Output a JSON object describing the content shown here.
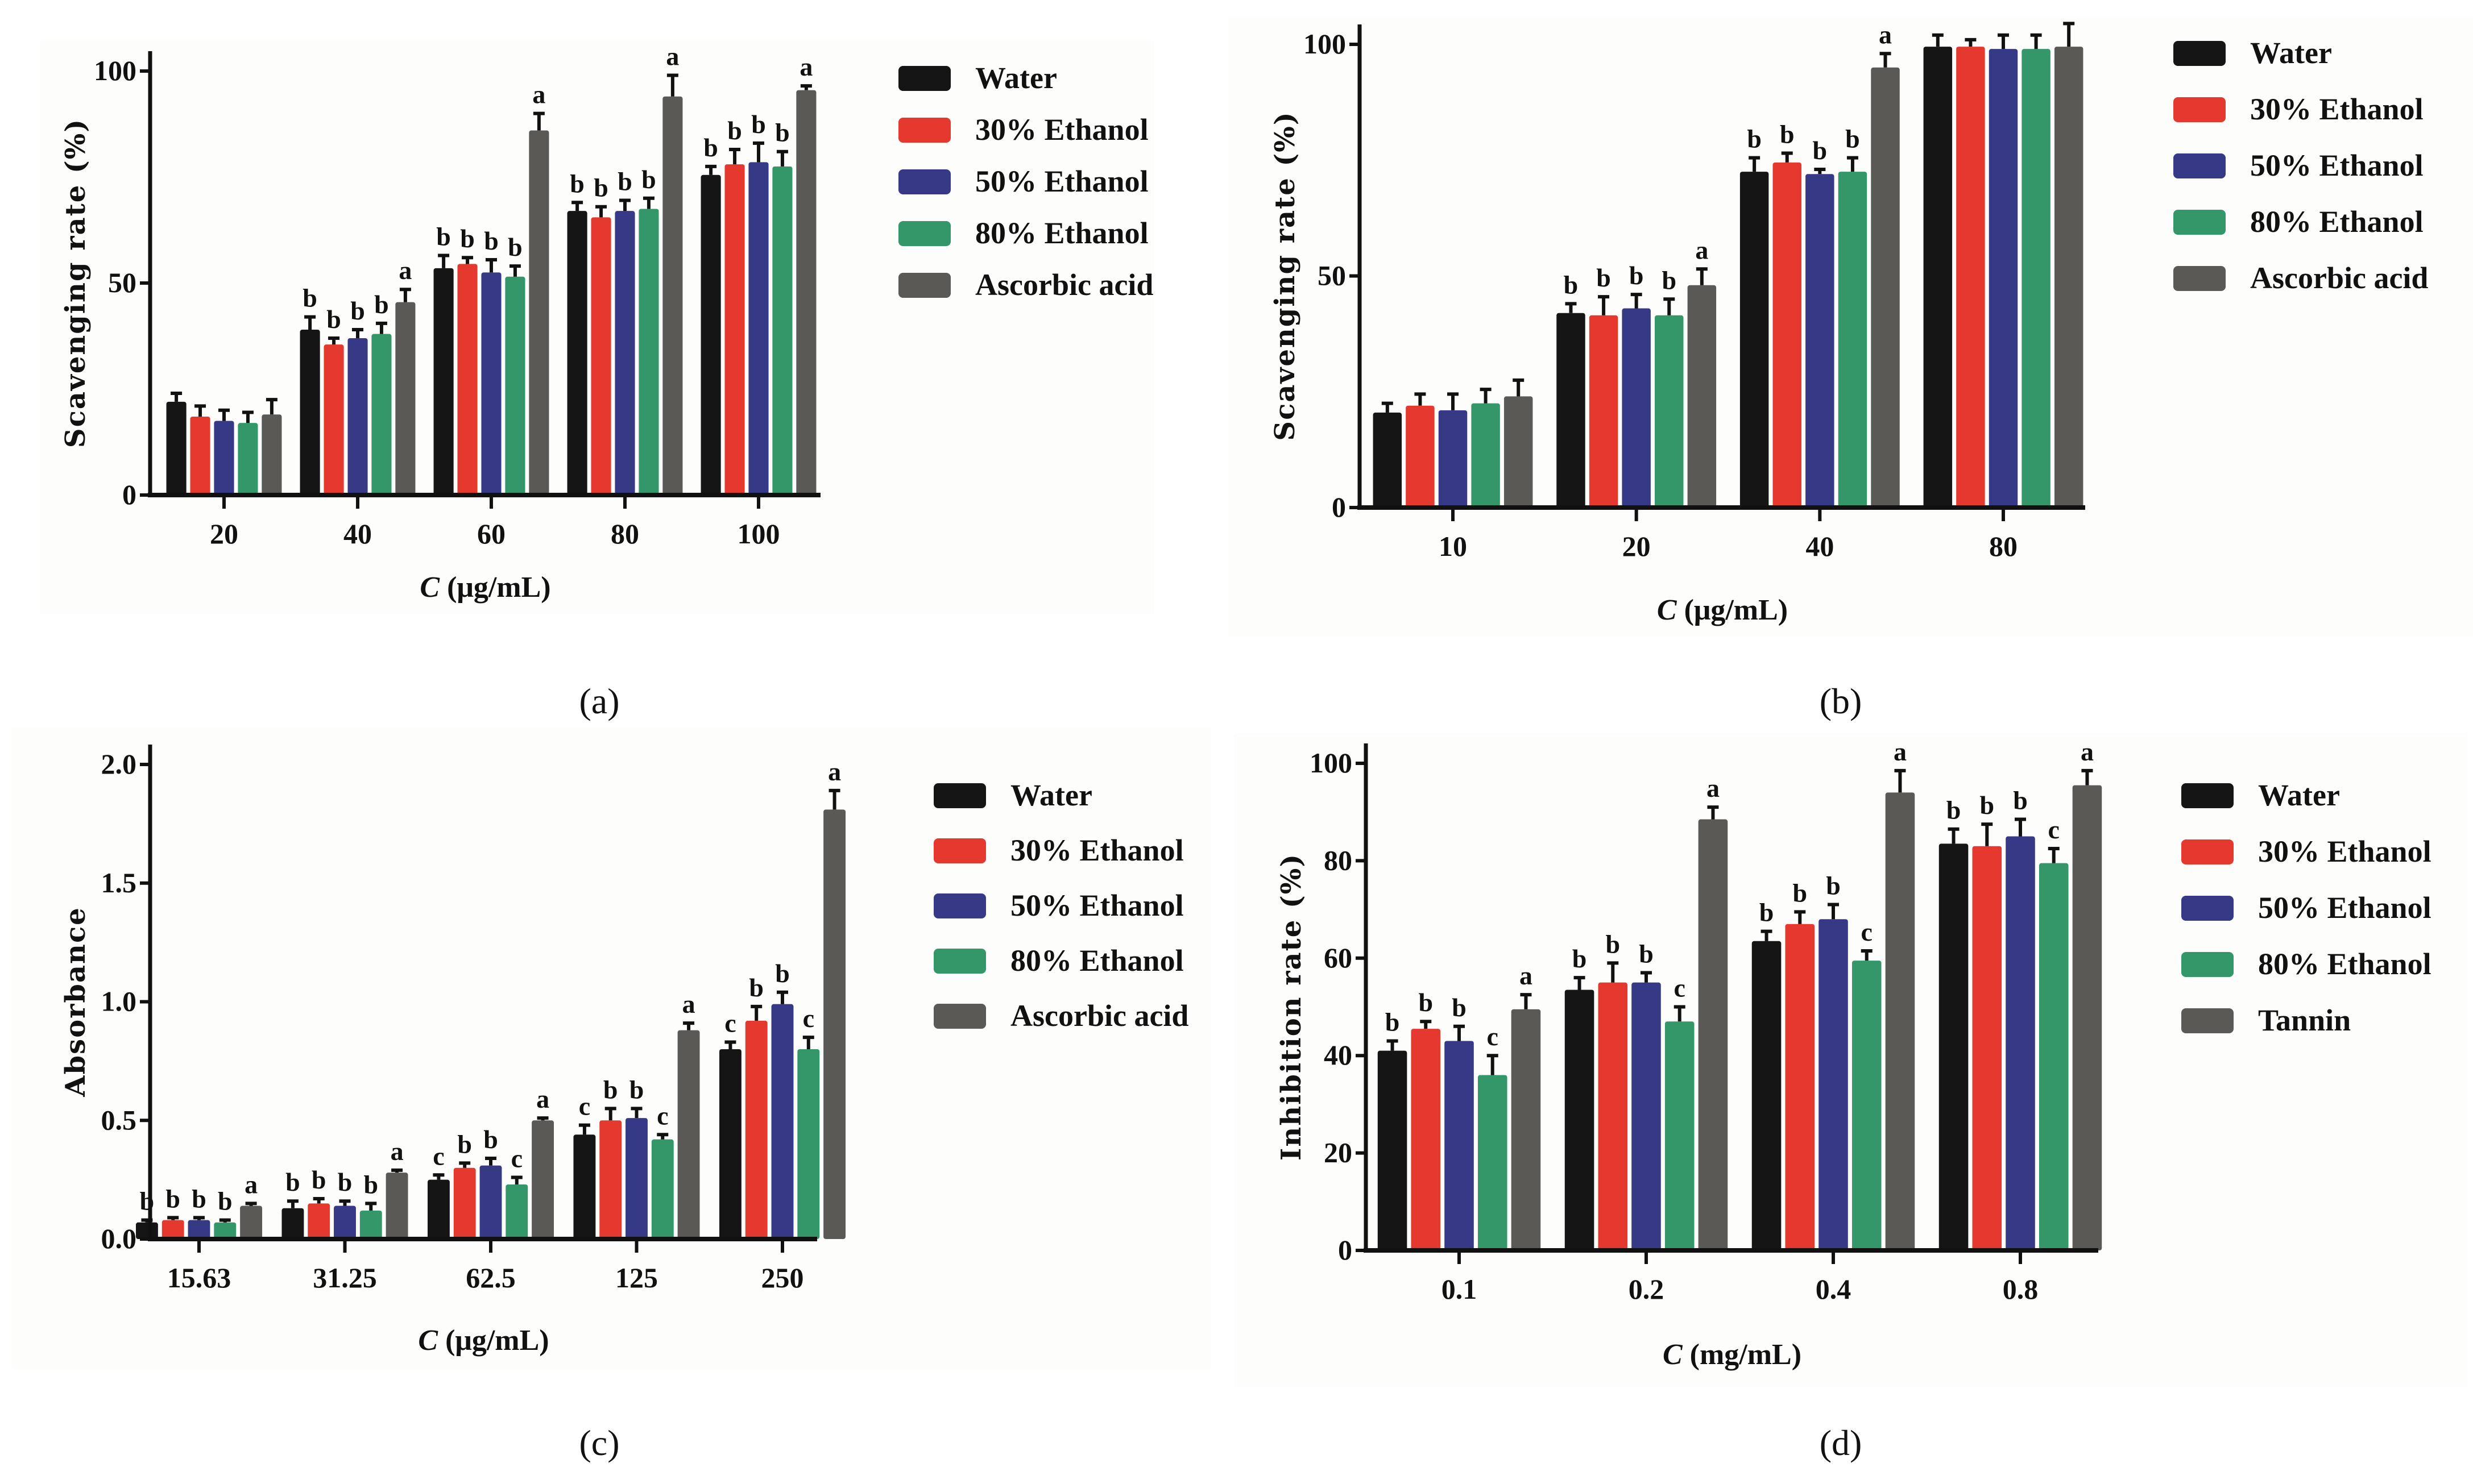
{
  "colors": {
    "Water": "#151515",
    "30% Ethanol": "#e5382f",
    "50% Ethanol": "#363a86",
    "80% Ethanol": "#33976a",
    "Ascorbic acid": "#5b5955",
    "Tannin": "#5b5955"
  },
  "chart_data": [
    {
      "type": "bar",
      "caption": "(a)",
      "ylabel": "Scavenging rate (%)",
      "xlabel_var": "C",
      "xlabel_unit": " (μg/mL)",
      "ylim": [
        0,
        100
      ],
      "yticks": [
        "0",
        "50",
        "100"
      ],
      "ytick_values": [
        0,
        50,
        100
      ],
      "categories": [
        "20",
        "40",
        "60",
        "80",
        "100"
      ],
      "legend_position": "right",
      "series": [
        {
          "name": "Water",
          "values": [
            22,
            39,
            53.5,
            67,
            75.5
          ],
          "errors": [
            2,
            3,
            3,
            2,
            2
          ],
          "letters": [
            "",
            "b",
            "b",
            "b",
            "b"
          ]
        },
        {
          "name": "30% Ethanol",
          "values": [
            18.5,
            35.5,
            54.5,
            65.5,
            78
          ],
          "errors": [
            2.5,
            1.5,
            1.5,
            2.5,
            3.5
          ],
          "letters": [
            "",
            "b",
            "b",
            "b",
            "b"
          ]
        },
        {
          "name": "50% Ethanol",
          "values": [
            17.5,
            37,
            52.5,
            67,
            78.5
          ],
          "errors": [
            2.5,
            2,
            3,
            2.5,
            4.5
          ],
          "letters": [
            "",
            "b",
            "b",
            "b",
            "b"
          ]
        },
        {
          "name": "80% Ethanol",
          "values": [
            17,
            38,
            51.5,
            67.5,
            77.5
          ],
          "errors": [
            2.5,
            2.5,
            2.5,
            2.5,
            3.5
          ],
          "letters": [
            "",
            "b",
            "b",
            "b",
            "b"
          ]
        },
        {
          "name": "Ascorbic acid",
          "values": [
            19,
            45.5,
            86,
            94,
            95.5
          ],
          "errors": [
            3.5,
            3,
            4,
            5,
            1
          ],
          "letters": [
            "",
            "a",
            "a",
            "a",
            "a"
          ]
        }
      ]
    },
    {
      "type": "bar",
      "caption": "(b)",
      "ylabel": "Scavenging rate (%)",
      "xlabel_var": "C",
      "xlabel_unit": " (μg/mL)",
      "ylim": [
        0,
        100
      ],
      "yticks": [
        "0",
        "50",
        "100"
      ],
      "ytick_values": [
        0,
        50,
        100
      ],
      "categories": [
        "10",
        "20",
        "40",
        "80"
      ],
      "legend_position": "right",
      "series": [
        {
          "name": "Water",
          "values": [
            20.5,
            42,
            72.5,
            99.5
          ],
          "errors": [
            2,
            2,
            3,
            2.5
          ],
          "letters": [
            "",
            "b",
            "b",
            ""
          ]
        },
        {
          "name": "30% Ethanol",
          "values": [
            22,
            41.5,
            74.5,
            99.5
          ],
          "errors": [
            2.5,
            4,
            2,
            1.5
          ],
          "letters": [
            "",
            "b",
            "b",
            ""
          ]
        },
        {
          "name": "50% Ethanol",
          "values": [
            21,
            43,
            72,
            99
          ],
          "errors": [
            3.5,
            3,
            1,
            3
          ],
          "letters": [
            "",
            "b",
            "b",
            ""
          ]
        },
        {
          "name": "80% Ethanol",
          "values": [
            22.5,
            41.5,
            72.5,
            99
          ],
          "errors": [
            3,
            3.5,
            3,
            3
          ],
          "letters": [
            "",
            "b",
            "b",
            ""
          ]
        },
        {
          "name": "Ascorbic acid",
          "values": [
            24,
            48,
            95,
            99.5
          ],
          "errors": [
            3.5,
            3.5,
            3,
            5
          ],
          "letters": [
            "",
            "a",
            "a",
            ""
          ]
        }
      ]
    },
    {
      "type": "bar",
      "caption": "(c)",
      "ylabel": "Absorbance",
      "xlabel_var": "C",
      "xlabel_unit": " (μg/mL)",
      "ylim": [
        0,
        2
      ],
      "yticks": [
        "0.0",
        "0.5",
        "1.0",
        "1.5",
        "2.0"
      ],
      "ytick_values": [
        0,
        0.5,
        1,
        1.5,
        2
      ],
      "categories": [
        "15.63",
        "31.25",
        "62.5",
        "125",
        "250"
      ],
      "legend_position": "right",
      "series": [
        {
          "name": "Water",
          "values": [
            0.07,
            0.13,
            0.25,
            0.44,
            0.8
          ],
          "errors": [
            0.01,
            0.03,
            0.02,
            0.04,
            0.03
          ],
          "letters": [
            "b",
            "b",
            "c",
            "c",
            "c"
          ]
        },
        {
          "name": "30% Ethanol",
          "values": [
            0.08,
            0.15,
            0.3,
            0.5,
            0.92
          ],
          "errors": [
            0.01,
            0.02,
            0.02,
            0.05,
            0.06
          ],
          "letters": [
            "b",
            "b",
            "b",
            "b",
            "b"
          ]
        },
        {
          "name": "50% Ethanol",
          "values": [
            0.08,
            0.14,
            0.31,
            0.51,
            0.99
          ],
          "errors": [
            0.01,
            0.02,
            0.03,
            0.04,
            0.05
          ],
          "letters": [
            "b",
            "b",
            "b",
            "b",
            "b"
          ]
        },
        {
          "name": "80% Ethanol",
          "values": [
            0.07,
            0.12,
            0.23,
            0.42,
            0.8
          ],
          "errors": [
            0.01,
            0.03,
            0.03,
            0.02,
            0.05
          ],
          "letters": [
            "b",
            "b",
            "c",
            "c",
            "c"
          ]
        },
        {
          "name": "Ascorbic acid",
          "values": [
            0.14,
            0.28,
            0.5,
            0.88,
            1.81
          ],
          "errors": [
            0.01,
            0.01,
            0.01,
            0.03,
            0.08
          ],
          "letters": [
            "a",
            "a",
            "a",
            "a",
            "a"
          ]
        }
      ]
    },
    {
      "type": "bar",
      "caption": "(d)",
      "ylabel": "Inhibition rate (%)",
      "xlabel_var": "C",
      "xlabel_unit": " (mg/mL)",
      "ylim": [
        0,
        100
      ],
      "yticks": [
        "0",
        "20",
        "40",
        "60",
        "80",
        "100"
      ],
      "ytick_values": [
        0,
        20,
        40,
        60,
        80,
        100
      ],
      "categories": [
        "0.1",
        "0.2",
        "0.4",
        "0.8"
      ],
      "legend_position": "right",
      "series": [
        {
          "name": "Water",
          "values": [
            41,
            53.5,
            63.5,
            83.5
          ],
          "errors": [
            2,
            2.5,
            2,
            3
          ],
          "letters": [
            "b",
            "b",
            "b",
            "b"
          ]
        },
        {
          "name": "30% Ethanol",
          "values": [
            45.5,
            55,
            67,
            83
          ],
          "errors": [
            1.5,
            4,
            2.5,
            4.5
          ],
          "letters": [
            "b",
            "b",
            "b",
            "b"
          ]
        },
        {
          "name": "50% Ethanol",
          "values": [
            43,
            55,
            68,
            85
          ],
          "errors": [
            3,
            2,
            3,
            3.5
          ],
          "letters": [
            "b",
            "b",
            "b",
            "b"
          ]
        },
        {
          "name": "80% Ethanol",
          "values": [
            36,
            47,
            59.5,
            79.5
          ],
          "errors": [
            4,
            3,
            2,
            3
          ],
          "letters": [
            "c",
            "c",
            "c",
            "c"
          ]
        },
        {
          "name": "Tannin",
          "values": [
            49.5,
            88.5,
            94,
            95.5
          ],
          "errors": [
            3,
            2.5,
            4.5,
            3
          ],
          "letters": [
            "a",
            "a",
            "a",
            "a"
          ]
        }
      ]
    }
  ]
}
